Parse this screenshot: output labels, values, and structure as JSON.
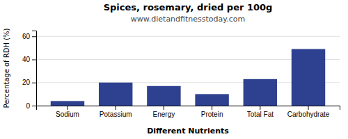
{
  "chart_data": {
    "type": "bar",
    "title": "Spices, rosemary, dried per 100g",
    "subtitle": "www.dietandfitnesstoday.com",
    "xlabel": "Different Nutrients",
    "ylabel": "Percentage of RDH (%)",
    "categories": [
      "Sodium",
      "Potassium",
      "Energy",
      "Protein",
      "Total Fat",
      "Carbohydrate"
    ],
    "values": [
      4,
      20,
      17,
      10,
      23,
      49
    ],
    "color": "#2e4090",
    "ylim": [
      0,
      65
    ],
    "yticks": [
      0,
      20,
      40,
      60
    ],
    "grid": true
  }
}
